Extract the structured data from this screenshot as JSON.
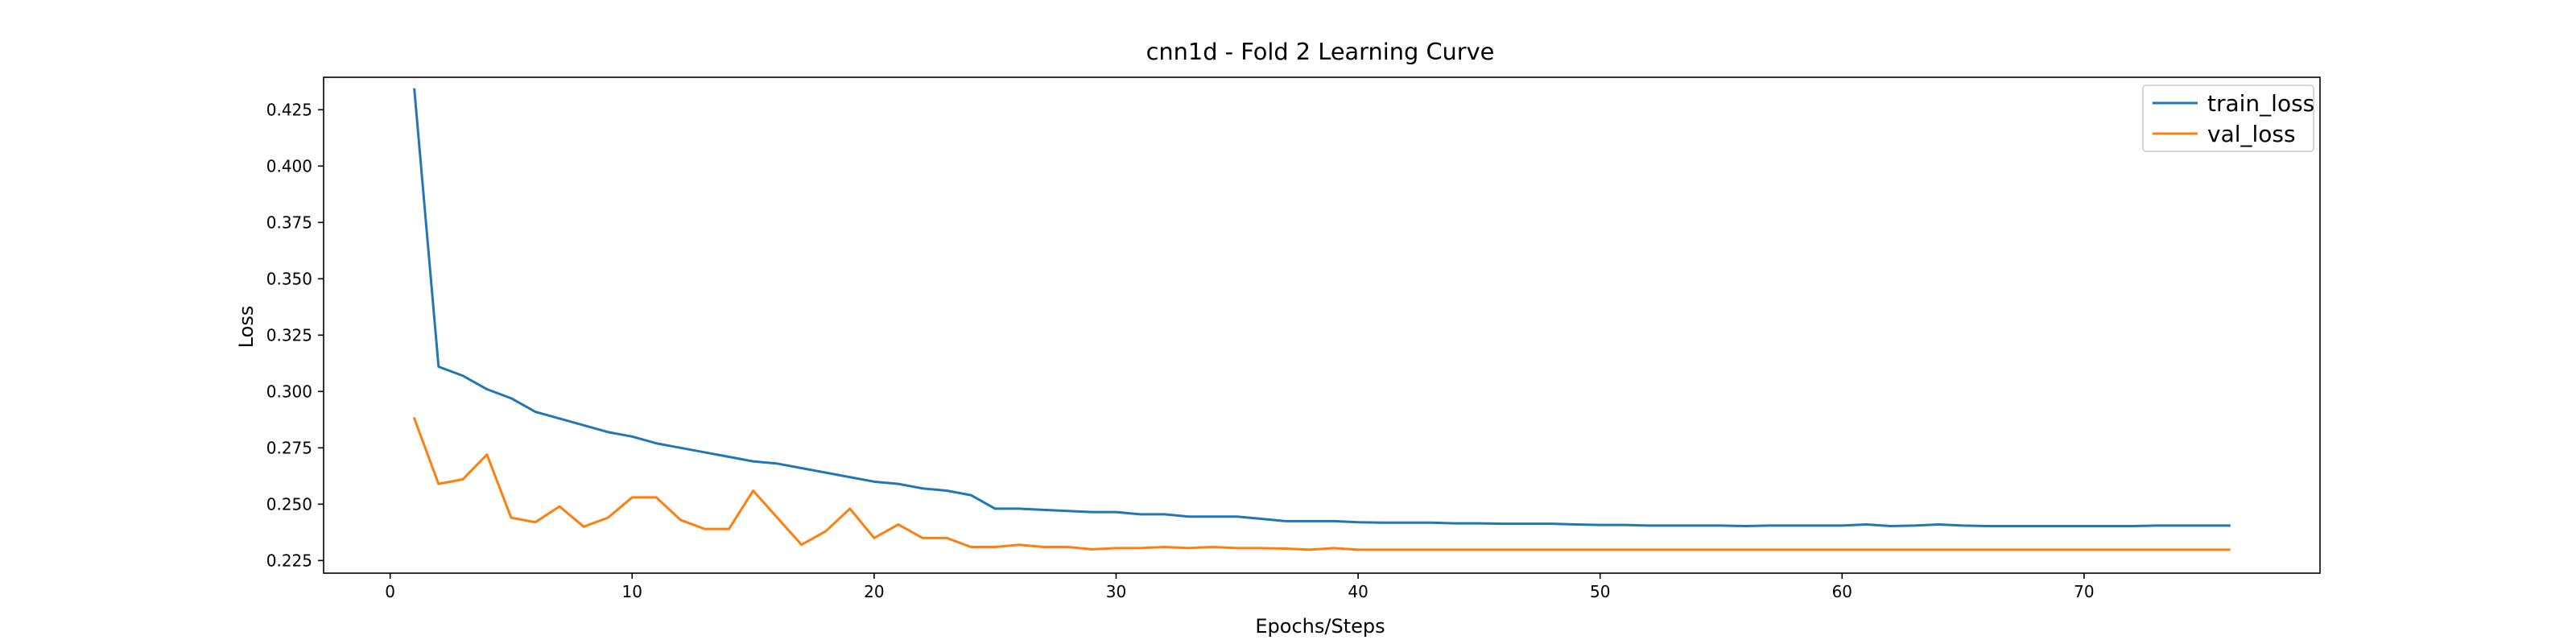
{
  "chart_data": {
    "type": "line",
    "title": "cnn1d - Fold 2 Learning Curve",
    "xlabel": "Epochs/Steps",
    "ylabel": "Loss",
    "xlim": [
      -2.75,
      79.75
    ],
    "ylim": [
      0.2194,
      0.4394
    ],
    "xticks": [
      0,
      10,
      20,
      30,
      40,
      50,
      60,
      70
    ],
    "yticks": [
      0.225,
      0.25,
      0.275,
      0.3,
      0.325,
      0.35,
      0.375,
      0.4,
      0.425
    ],
    "grid": false,
    "legend_position": "top-right",
    "x": [
      1,
      2,
      3,
      4,
      5,
      6,
      7,
      8,
      9,
      10,
      11,
      12,
      13,
      14,
      15,
      16,
      17,
      18,
      19,
      20,
      21,
      22,
      23,
      24,
      25,
      26,
      27,
      28,
      29,
      30,
      31,
      32,
      33,
      34,
      35,
      36,
      37,
      38,
      39,
      40,
      41,
      42,
      43,
      44,
      45,
      46,
      47,
      48,
      49,
      50,
      51,
      52,
      53,
      54,
      55,
      56,
      57,
      58,
      59,
      60,
      61,
      62,
      63,
      64,
      65,
      66,
      67,
      68,
      69,
      70,
      71,
      72,
      73,
      74,
      75,
      76
    ],
    "series": [
      {
        "name": "train_loss",
        "color": "#1f77b4",
        "values": [
          0.434,
          0.311,
          0.307,
          0.301,
          0.297,
          0.291,
          0.288,
          0.285,
          0.282,
          0.28,
          0.277,
          0.275,
          0.273,
          0.271,
          0.269,
          0.268,
          0.266,
          0.264,
          0.262,
          0.26,
          0.259,
          0.257,
          0.256,
          0.254,
          0.248,
          0.248,
          0.2475,
          0.247,
          0.2465,
          0.2465,
          0.2455,
          0.2455,
          0.2445,
          0.2445,
          0.2445,
          0.2435,
          0.2425,
          0.2425,
          0.2425,
          0.242,
          0.2418,
          0.2418,
          0.2418,
          0.2415,
          0.2415,
          0.2413,
          0.2413,
          0.2413,
          0.241,
          0.2408,
          0.2408,
          0.2405,
          0.2405,
          0.2405,
          0.2405,
          0.2403,
          0.2405,
          0.2405,
          0.2405,
          0.2405,
          0.241,
          0.2403,
          0.2405,
          0.241,
          0.2405,
          0.2403,
          0.2403,
          0.2403,
          0.2403,
          0.2403,
          0.2403,
          0.2403,
          0.2405,
          0.2405,
          0.2405,
          0.2405
        ]
      },
      {
        "name": "val_loss",
        "color": "#ff7f0e",
        "values": [
          0.288,
          0.259,
          0.261,
          0.272,
          0.244,
          0.242,
          0.249,
          0.24,
          0.244,
          0.253,
          0.253,
          0.243,
          0.239,
          0.239,
          0.256,
          0.244,
          0.232,
          0.238,
          0.248,
          0.235,
          0.241,
          0.235,
          0.235,
          0.231,
          0.231,
          0.232,
          0.231,
          0.231,
          0.23,
          0.2305,
          0.2305,
          0.231,
          0.2305,
          0.231,
          0.2305,
          0.2305,
          0.2303,
          0.2298,
          0.2305,
          0.2298,
          0.2298,
          0.2298,
          0.2298,
          0.2298,
          0.2298,
          0.2298,
          0.2298,
          0.2298,
          0.2298,
          0.2298,
          0.2298,
          0.2298,
          0.2298,
          0.2298,
          0.2298,
          0.2298,
          0.2298,
          0.2298,
          0.2298,
          0.2298,
          0.2298,
          0.2298,
          0.2298,
          0.2298,
          0.2298,
          0.2298,
          0.2298,
          0.2298,
          0.2298,
          0.2298,
          0.2298,
          0.2298,
          0.2298,
          0.2298,
          0.2298,
          0.2298
        ]
      }
    ]
  }
}
